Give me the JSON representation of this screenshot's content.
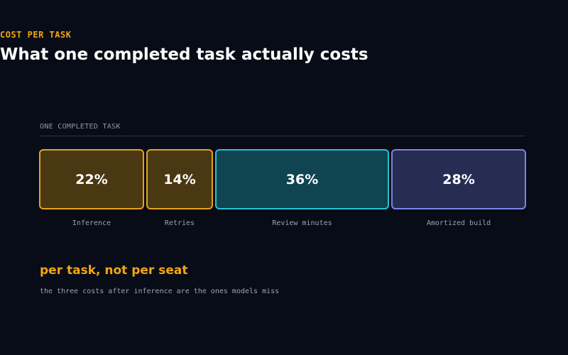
{
  "header": {
    "eyebrow": "COST PER TASK",
    "title": "What one completed task actually costs"
  },
  "breakdown": {
    "label": "ONE COMPLETED TASK",
    "segments": [
      {
        "value": "22%",
        "share": 22,
        "label": "Inference",
        "fill": "#4a3812",
        "border": "#e5a21a"
      },
      {
        "value": "14%",
        "share": 14,
        "label": "Retries",
        "fill": "#4a3812",
        "border": "#e5a21a"
      },
      {
        "value": "36%",
        "share": 36,
        "label": "Review minutes",
        "fill": "#0f4450",
        "border": "#22c3dc"
      },
      {
        "value": "28%",
        "share": 28,
        "label": "Amortized build",
        "fill": "#272d52",
        "border": "#7b84e6"
      }
    ]
  },
  "callout": {
    "heading": "per task, not per seat",
    "note": "the three costs after inference are the ones models miss"
  }
}
